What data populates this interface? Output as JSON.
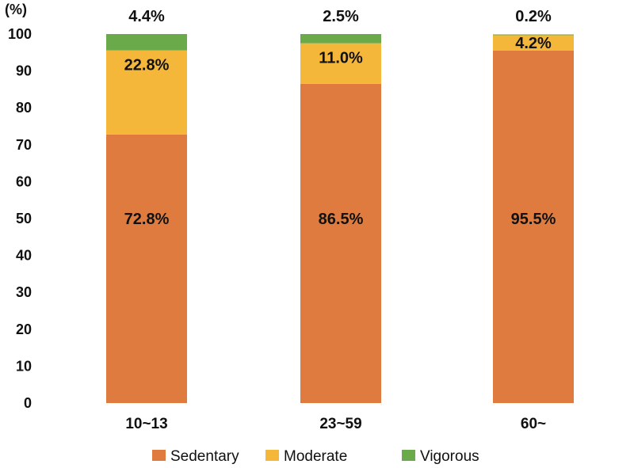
{
  "chart_data": {
    "type": "bar",
    "stacked": true,
    "title": "",
    "xlabel": "",
    "ylabel": "(%)",
    "ylim": [
      0,
      100
    ],
    "yticks": [
      0,
      10,
      20,
      30,
      40,
      50,
      60,
      70,
      80,
      90,
      100
    ],
    "grid": false,
    "legend_position": "bottom",
    "categories": [
      "10~13",
      "23~59",
      "60~"
    ],
    "series": [
      {
        "name": "Sedentary",
        "color": "#E07B3F",
        "values": [
          72.8,
          86.5,
          95.5
        ],
        "labels": [
          "72.8%",
          "86.5%",
          "95.5%"
        ]
      },
      {
        "name": "Moderate",
        "color": "#F5B73A",
        "values": [
          22.8,
          11.0,
          4.2
        ],
        "labels": [
          "22.8%",
          "11.0%",
          "4.2%"
        ]
      },
      {
        "name": "Vigorous",
        "color": "#6AAA4A",
        "values": [
          4.4,
          2.5,
          0.2
        ],
        "labels": [
          "4.4%",
          "2.5%",
          "0.2%"
        ]
      }
    ]
  }
}
